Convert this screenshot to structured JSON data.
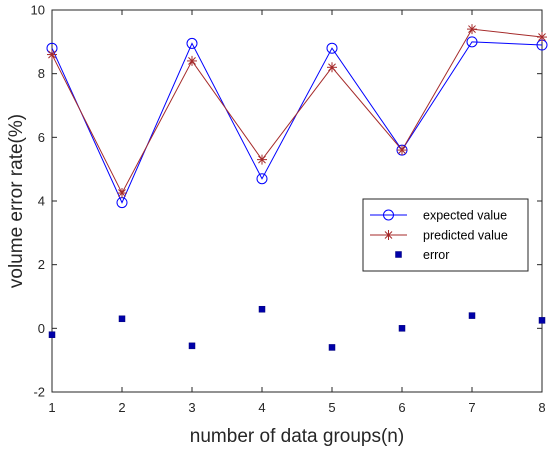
{
  "chart_data": {
    "type": "line",
    "xlabel": "number of data groups(n)",
    "ylabel": "volume error rate(%)",
    "xlim": [
      1,
      8
    ],
    "ylim": [
      -2,
      10
    ],
    "x_ticks": [
      "1",
      "2",
      "3",
      "4",
      "5",
      "6",
      "7",
      "8"
    ],
    "y_ticks": [
      "-2",
      "0",
      "2",
      "4",
      "6",
      "8",
      "10"
    ],
    "grid": false,
    "legend_position": "right",
    "x": [
      1,
      2,
      3,
      4,
      5,
      6,
      7,
      8
    ],
    "series": [
      {
        "name": "expected value",
        "marker": "circle",
        "color": "#0000ff",
        "values": [
          8.8,
          3.95,
          8.95,
          4.7,
          8.8,
          5.6,
          9.0,
          8.9
        ]
      },
      {
        "name": "predicted value",
        "marker": "asterisk",
        "color": "#a52a2a",
        "values": [
          8.6,
          4.25,
          8.4,
          5.3,
          8.2,
          5.6,
          9.4,
          9.15
        ]
      },
      {
        "name": "error",
        "marker": "square",
        "color": "#0000a8",
        "values": [
          -0.2,
          0.3,
          -0.55,
          0.6,
          -0.6,
          0.0,
          0.4,
          0.25
        ]
      }
    ]
  }
}
